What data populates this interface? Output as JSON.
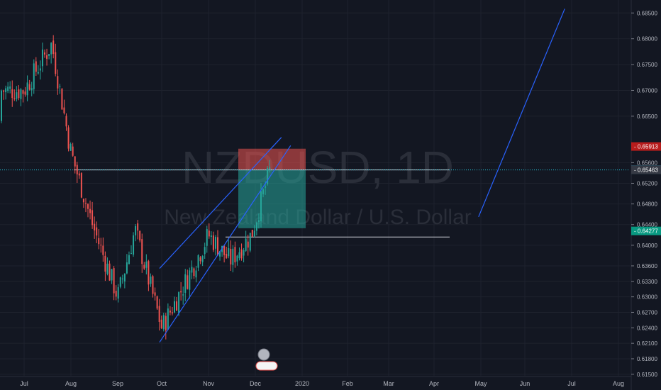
{
  "watermark": {
    "symbol": "NZDUSD, 1D",
    "name": "New Zealand Dollar / U.S. Dollar"
  },
  "colors": {
    "background": "#131722",
    "up": "#26a69a",
    "down": "#ef5350",
    "trendline": "#2962ff",
    "grid": "#1e222d",
    "axis_text": "#b2b5be"
  },
  "chart_data": {
    "type": "candlestick",
    "symbol": "NZDUSD",
    "interval": "1D",
    "y_axis": {
      "ticks": [
        "0.68500",
        "0.68000",
        "0.67500",
        "0.67000",
        "0.66500",
        "0.65600",
        "0.65200",
        "0.64800",
        "0.64400",
        "0.64000",
        "0.63600",
        "0.63300",
        "0.63000",
        "0.62700",
        "0.62400",
        "0.62100",
        "0.61800",
        "0.61500"
      ],
      "range": [
        0.6147,
        0.686
      ]
    },
    "x_axis": {
      "ticks": [
        "Jul",
        "Aug",
        "Sep",
        "Oct",
        "Nov",
        "Dec",
        "2020",
        "Feb",
        "Mar",
        "Apr",
        "May",
        "Jun",
        "Jul",
        "Aug"
      ]
    },
    "price_labels": [
      {
        "value": "0.65913",
        "color": "#b71c1c"
      },
      {
        "value": "0.65465",
        "color": "#1e88a8"
      },
      {
        "value": "0.65463",
        "color": "#363a45"
      },
      {
        "value": "0.64277",
        "color": "#089981"
      }
    ],
    "position_tool": {
      "entry": 0.6546,
      "stop": 0.6587,
      "target": 0.6433
    },
    "horizontal_lines": [
      0.6546,
      0.6416
    ],
    "trendlines": [
      {
        "from": [
          "Jun 27",
          0.6858
        ],
        "to": [
          "Apr 30",
          0.6455
        ]
      },
      {
        "from": [
          "Sep 30",
          0.6212
        ],
        "to": [
          "Dec 24",
          0.6593
        ]
      },
      {
        "from": [
          "Sep 30",
          0.6355
        ],
        "to": [
          "Dec 18",
          0.6609
        ]
      }
    ],
    "candles_sample_close": [
      [
        "Jul 1",
        0.67
      ],
      [
        "Jul 19",
        0.679
      ],
      [
        "Aug 1",
        0.658
      ],
      [
        "Aug 15",
        0.644
      ],
      [
        "Sep 1",
        0.63
      ],
      [
        "Sep 13",
        0.643
      ],
      [
        "Oct 1",
        0.624
      ],
      [
        "Oct 15",
        0.632
      ],
      [
        "Nov 1",
        0.642
      ],
      [
        "Nov 15",
        0.637
      ],
      [
        "Nov 29",
        0.642
      ],
      [
        "Dec 11",
        0.655
      ]
    ]
  }
}
